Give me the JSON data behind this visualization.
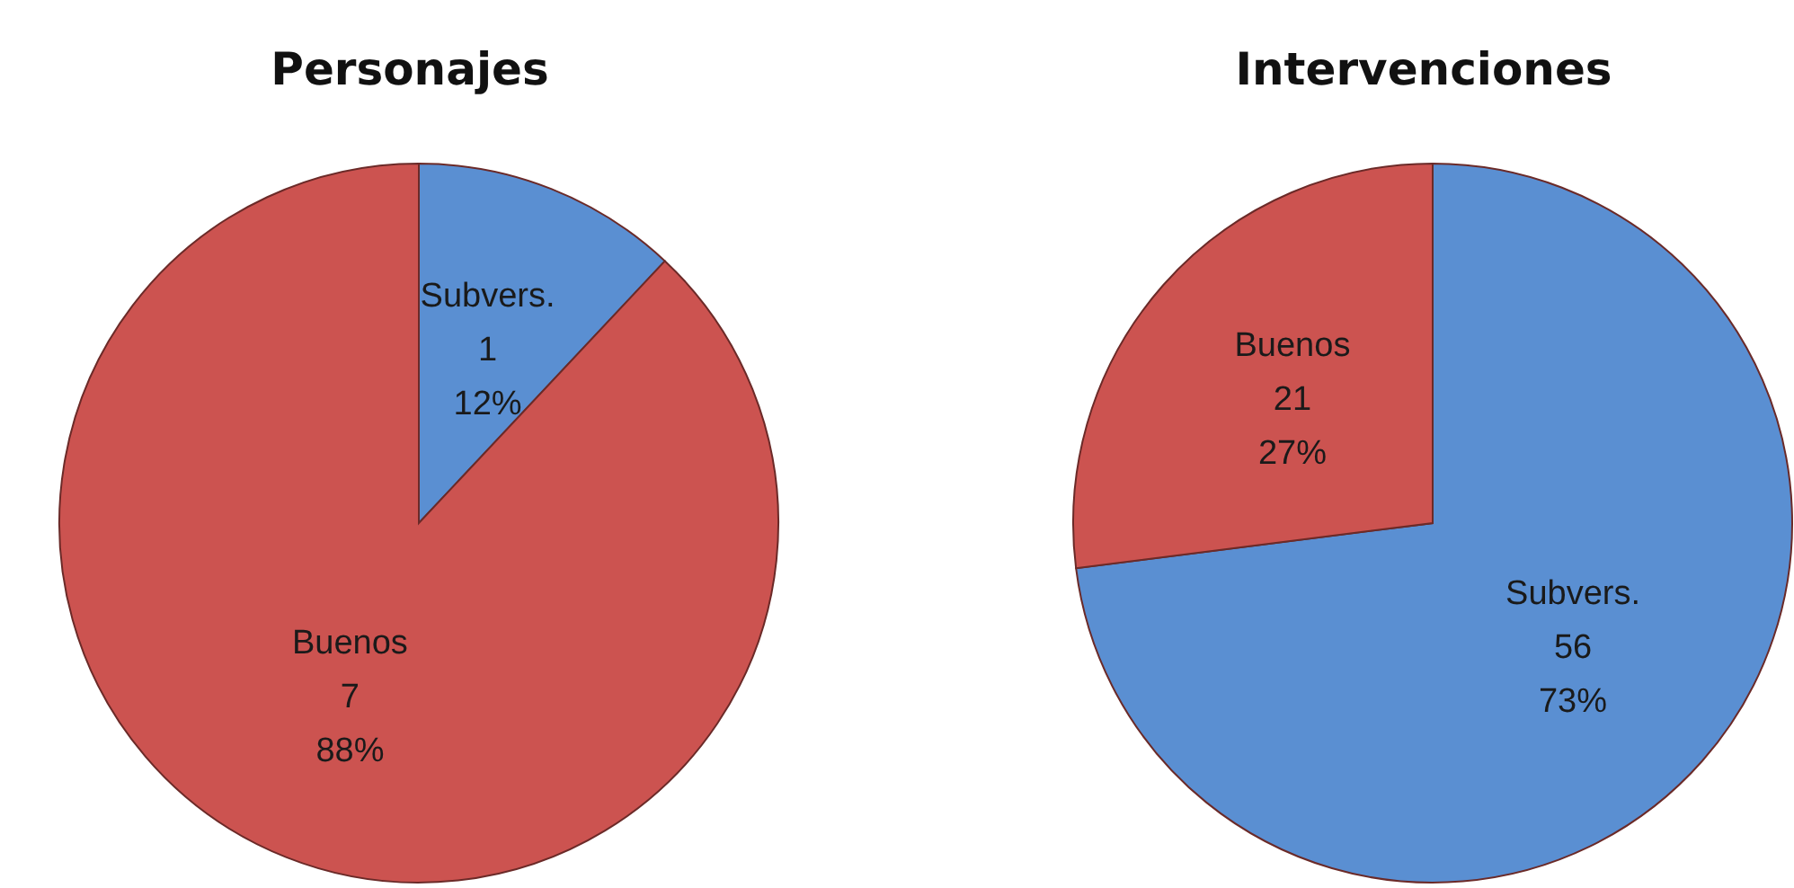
{
  "chart_data": [
    {
      "type": "pie",
      "title": "Personajes",
      "categories": [
        "Subvers.",
        "Buenos"
      ],
      "values": [
        12,
        88
      ],
      "colors": [
        "#5a8fd2",
        "#cc5350"
      ],
      "value_labels": [
        "1\n12%",
        "7\n88%"
      ]
    },
    {
      "type": "pie",
      "title": "Intervenciones",
      "categories": [
        "Subvers.",
        "Buenos"
      ],
      "values": [
        73,
        27
      ],
      "colors": [
        "#5a8fd2",
        "#cc5350"
      ],
      "value_labels": [
        "56\n73%",
        "21\n27%"
      ]
    }
  ]
}
